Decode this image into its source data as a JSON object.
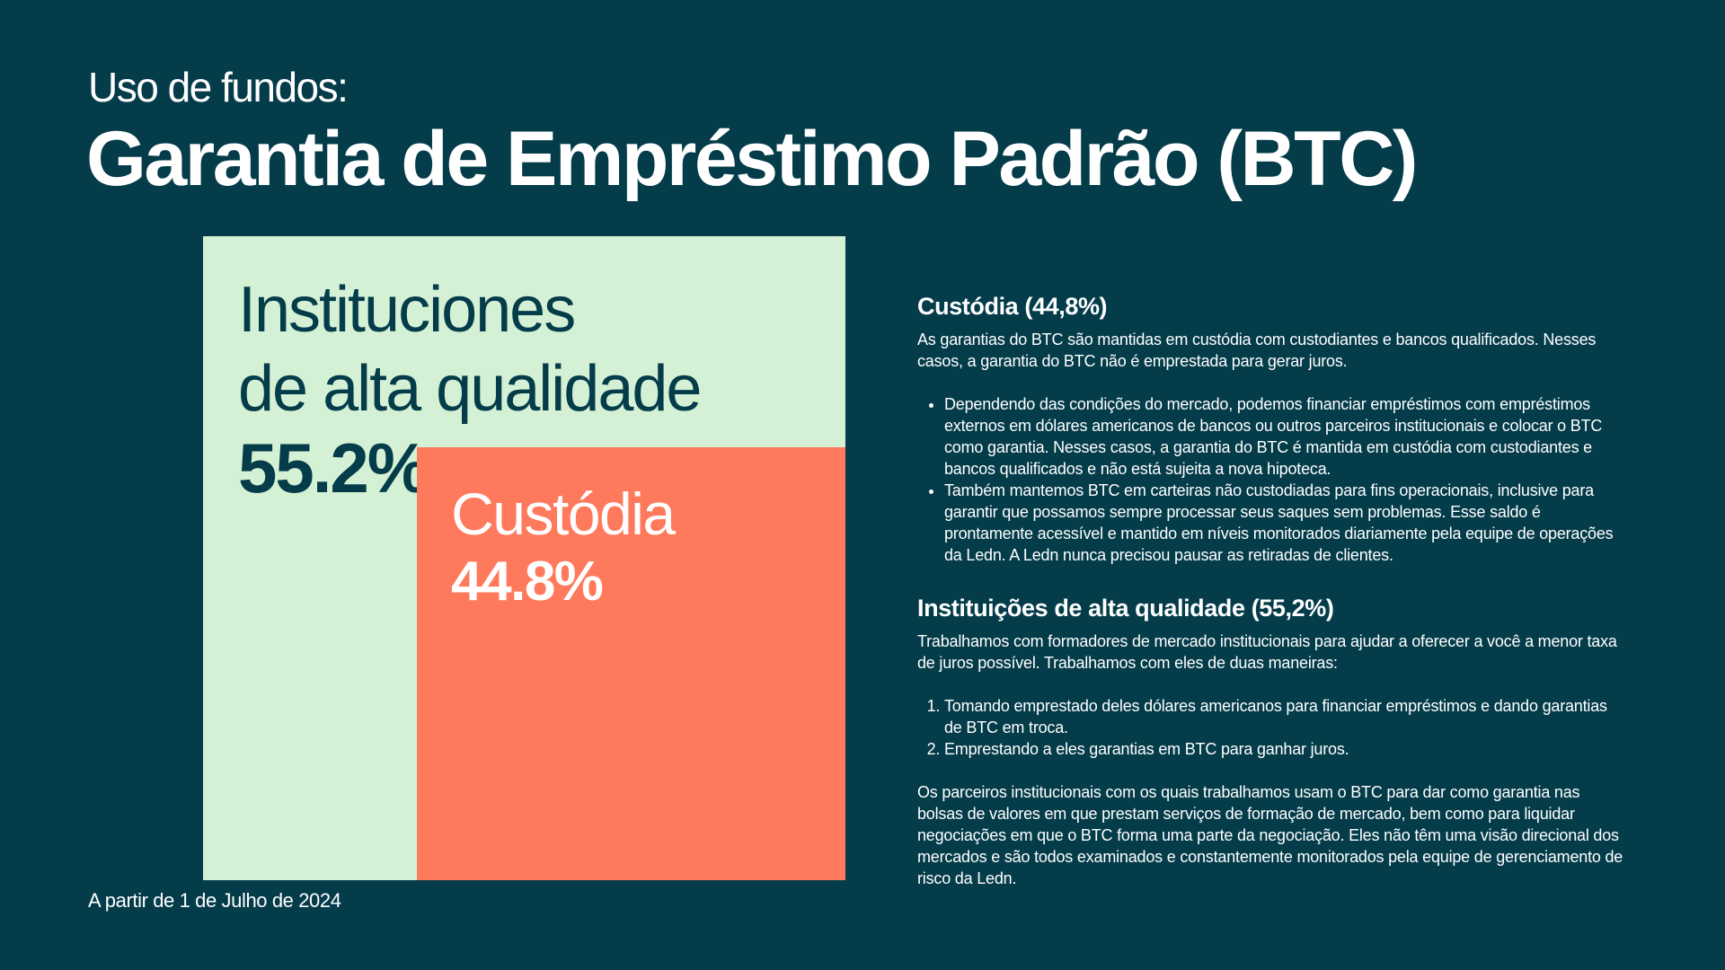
{
  "header": {
    "subtitle": "Uso de fundos:",
    "title": "Garantia de Empréstimo Padrão (BTC)"
  },
  "chart_data": {
    "type": "treemap",
    "series": [
      {
        "name": "Instituciones de alta qualidade",
        "name_lines": [
          "Instituciones",
          "de alta qualidade"
        ],
        "value": 55.2,
        "label": "55.2%",
        "color": "#d5f1d5"
      },
      {
        "name": "Custódia",
        "name_lines": [
          "Custódia"
        ],
        "value": 44.8,
        "label": "44.8%",
        "color": "#ff7a5c"
      }
    ]
  },
  "footer": {
    "as_of": "A partir de 1 de Julho de 2024"
  },
  "custody": {
    "heading": "Custódia (44,8%)",
    "intro": "As garantias do BTC são mantidas em custódia com custodiantes e bancos qualificados. Nesses casos, a garantia do BTC não é emprestada para gerar juros.",
    "bullets": [
      "Dependendo das condições do mercado, podemos financiar empréstimos com empréstimos externos em dólares americanos de bancos ou outros parceiros institucionais e colocar o BTC como garantia. Nesses casos, a garantia do BTC é mantida em custódia com custodiantes e bancos qualificados e não está sujeita a nova hipoteca.",
      "Também mantemos BTC em carteiras não custodiadas para fins operacionais, inclusive para garantir que possamos sempre processar seus saques sem problemas. Esse saldo é prontamente acessível e mantido em níveis monitorados diariamente pela equipe de operações da Ledn. A Ledn nunca precisou pausar as retiradas de clientes."
    ]
  },
  "institutions": {
    "heading": "Instituições de alta qualidade (55,2%)",
    "intro": "Trabalhamos com formadores de mercado institucionais para ajudar a oferecer a você a menor taxa de juros possível. Trabalhamos com eles de duas maneiras:",
    "items": [
      "Tomando emprestado deles dólares americanos para financiar empréstimos e dando garantias de BTC em troca.",
      "Emprestando a eles garantias em BTC para ganhar juros."
    ],
    "closing": "Os parceiros institucionais com os quais trabalhamos usam o BTC para dar como garantia nas bolsas de valores em que prestam serviços de formação de mercado, bem como para liquidar negociações em que o BTC forma uma parte da negociação. Eles não têm uma visão direcional dos mercados e são todos examinados e constantemente monitorados pela equipe de gerenciamento de risco da Ledn."
  }
}
